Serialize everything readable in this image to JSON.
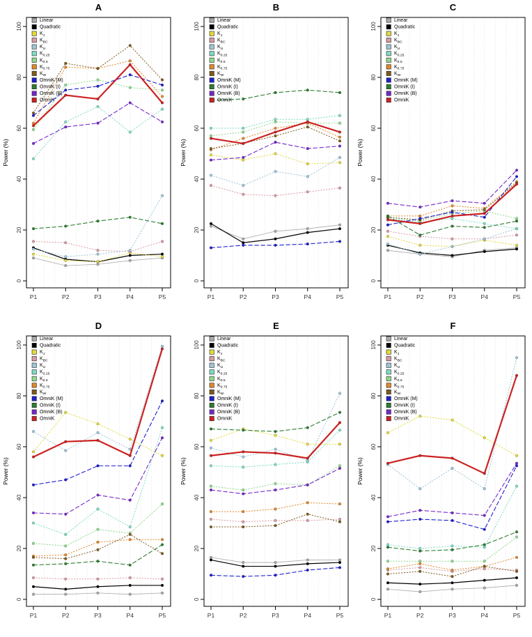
{
  "figure": {
    "background": "#ffffff"
  },
  "axis": {
    "ylabel": "Power (%)",
    "ylim": [
      0,
      100
    ],
    "yticks": [
      0,
      20,
      40,
      60,
      80,
      100
    ],
    "x_categories": [
      "P1",
      "P2",
      "P3",
      "P4",
      "P5"
    ],
    "grid": "vertical-dotted",
    "gridline_color": "#d9d9d9",
    "axis_color": "#000000",
    "tick_label_color": "#333333"
  },
  "legend": {
    "position": "top-left",
    "items": [
      {
        "label": "Linear",
        "color": "#a9a9a9",
        "line": "solid",
        "width": 0.8
      },
      {
        "label": "Quadratic",
        "color": "#000000",
        "line": "solid",
        "width": 1.2
      },
      {
        "label": "K_J",
        "color": "#e2d93b",
        "line": "dotted",
        "width": 1.0
      },
      {
        "label": "K_BC",
        "color": "#d89ba4",
        "line": "dotted",
        "width": 1.0
      },
      {
        "label": "K_U",
        "color": "#9fc5d8",
        "line": "dotted",
        "width": 1.0
      },
      {
        "label": "K_0.25",
        "color": "#7edcc3",
        "line": "dotted",
        "width": 1.0
      },
      {
        "label": "K_0.5",
        "color": "#8fd98f",
        "line": "dotted",
        "width": 1.0
      },
      {
        "label": "K_0.75",
        "color": "#e0882b",
        "line": "dotted",
        "width": 1.0
      },
      {
        "label": "K_W",
        "color": "#7d5a1e",
        "line": "dotted",
        "width": 1.0
      },
      {
        "label": "OmniK (M)",
        "color": "#1f1fcd",
        "line": "dashed",
        "width": 1.1
      },
      {
        "label": "OmniK (I)",
        "color": "#2e7d32",
        "line": "dashed",
        "width": 1.1
      },
      {
        "label": "OmniK (B)",
        "color": "#7528c8",
        "line": "dashed",
        "width": 1.1
      },
      {
        "label": "OmniK",
        "color": "#cc2222",
        "line": "solid",
        "width": 2.2
      }
    ]
  },
  "chart_data": [
    {
      "panel": "A",
      "type": "line",
      "title": "A",
      "x": [
        "P1",
        "P2",
        "P3",
        "P4",
        "P5"
      ],
      "ylabel": "Power (%)",
      "ylim": [
        0,
        100
      ],
      "series": [
        {
          "name": "Linear",
          "values": [
            9,
            6,
            6.5,
            8,
            9
          ]
        },
        {
          "name": "Quadratic",
          "values": [
            13,
            8.5,
            7.5,
            10,
            10.5
          ]
        },
        {
          "name": "K_J",
          "values": [
            10.5,
            8,
            7.5,
            11,
            9.5
          ]
        },
        {
          "name": "K_BC",
          "values": [
            15.5,
            15,
            12,
            11.5,
            15.5
          ]
        },
        {
          "name": "K_U",
          "values": [
            12.5,
            9.5,
            10.5,
            12,
            33.5
          ]
        },
        {
          "name": "K_0.25",
          "values": [
            48,
            62.5,
            68.5,
            58.5,
            67.5
          ]
        },
        {
          "name": "K_0.5",
          "values": [
            59.5,
            77,
            79,
            76,
            75
          ]
        },
        {
          "name": "K_0.75",
          "values": [
            62,
            84,
            83.5,
            86.5,
            72.5
          ]
        },
        {
          "name": "K_W",
          "values": [
            66,
            85.5,
            83.5,
            92.5,
            79
          ]
        },
        {
          "name": "OmniK (M)",
          "values": [
            65,
            75,
            76.5,
            81,
            77
          ]
        },
        {
          "name": "OmniK (I)",
          "values": [
            20.5,
            21.5,
            23.5,
            25,
            22.5
          ]
        },
        {
          "name": "OmniK (B)",
          "values": [
            54,
            60.5,
            62,
            70,
            62.5
          ]
        },
        {
          "name": "OmniK",
          "values": [
            61,
            73,
            71.5,
            85,
            70
          ]
        }
      ]
    },
    {
      "panel": "B",
      "type": "line",
      "title": "B",
      "x": [
        "P1",
        "P2",
        "P3",
        "P4",
        "P5"
      ],
      "ylabel": "Power (%)",
      "ylim": [
        0,
        100
      ],
      "series": [
        {
          "name": "Linear",
          "values": [
            21.5,
            16.5,
            19.5,
            20.5,
            22
          ]
        },
        {
          "name": "Quadratic",
          "values": [
            22.5,
            15,
            16.5,
            19,
            20.5
          ]
        },
        {
          "name": "K_J",
          "values": [
            49.5,
            47.5,
            50,
            46,
            46.5
          ]
        },
        {
          "name": "K_BC",
          "values": [
            37.5,
            34,
            33.5,
            35,
            36.5
          ]
        },
        {
          "name": "K_U",
          "values": [
            41.5,
            37.5,
            43,
            41,
            48.5
          ]
        },
        {
          "name": "K_0.25",
          "values": [
            60,
            60,
            63.5,
            63.5,
            65
          ]
        },
        {
          "name": "K_0.5",
          "values": [
            57,
            58.5,
            62.5,
            62,
            62
          ]
        },
        {
          "name": "K_0.75",
          "values": [
            51.5,
            56,
            60,
            62,
            56.5
          ]
        },
        {
          "name": "K_W",
          "values": [
            52,
            54,
            57,
            60.5,
            55
          ]
        },
        {
          "name": "OmniK (M)",
          "values": [
            13,
            14,
            14,
            14.5,
            15.5
          ]
        },
        {
          "name": "OmniK (I)",
          "values": [
            71,
            71.5,
            74,
            75,
            74
          ]
        },
        {
          "name": "OmniK (B)",
          "values": [
            47.5,
            48.5,
            54.5,
            52,
            53
          ]
        },
        {
          "name": "OmniK",
          "values": [
            56,
            54,
            58.5,
            62.5,
            58.5
          ]
        }
      ]
    },
    {
      "panel": "C",
      "type": "line",
      "title": "C",
      "x": [
        "P1",
        "P2",
        "P3",
        "P4",
        "P5"
      ],
      "ylabel": "Power (%)",
      "ylim": [
        0,
        100
      ],
      "series": [
        {
          "name": "Linear",
          "values": [
            12,
            10.5,
            9.5,
            12,
            13
          ]
        },
        {
          "name": "Quadratic",
          "values": [
            14,
            11,
            10,
            11.5,
            12.5
          ]
        },
        {
          "name": "K_J",
          "values": [
            17.5,
            14,
            13.5,
            16,
            14
          ]
        },
        {
          "name": "K_BC",
          "values": [
            19.5,
            17.5,
            16.5,
            16.5,
            18
          ]
        },
        {
          "name": "K_U",
          "values": [
            14.5,
            10.5,
            13.5,
            16.5,
            20.5
          ]
        },
        {
          "name": "K_0.25",
          "values": [
            24.5,
            23,
            24.5,
            22.5,
            20.5
          ]
        },
        {
          "name": "K_0.5",
          "values": [
            25,
            23.5,
            26.5,
            27.5,
            24.5
          ]
        },
        {
          "name": "K_0.75",
          "values": [
            25.5,
            25.5,
            29.5,
            28.5,
            39
          ]
        },
        {
          "name": "K_W",
          "values": [
            25,
            24,
            27.5,
            28,
            38.5
          ]
        },
        {
          "name": "OmniK (M)",
          "values": [
            22,
            24.5,
            27,
            25,
            41
          ]
        },
        {
          "name": "OmniK (I)",
          "values": [
            25.5,
            18,
            21.5,
            21,
            23.5
          ]
        },
        {
          "name": "OmniK (B)",
          "values": [
            30.5,
            29,
            31.5,
            30.5,
            43.5
          ]
        },
        {
          "name": "OmniK",
          "values": [
            24,
            22.5,
            25.5,
            26.5,
            38
          ]
        }
      ]
    },
    {
      "panel": "D",
      "type": "line",
      "title": "D",
      "x": [
        "P1",
        "P2",
        "P3",
        "P4",
        "P5"
      ],
      "ylabel": "Power (%)",
      "ylim": [
        0,
        100
      ],
      "series": [
        {
          "name": "Linear",
          "values": [
            2,
            2,
            2.5,
            2,
            2.5
          ]
        },
        {
          "name": "Quadratic",
          "values": [
            5,
            4,
            5,
            5.5,
            5.5
          ]
        },
        {
          "name": "K_J",
          "values": [
            58,
            73.5,
            69,
            63,
            56.5
          ]
        },
        {
          "name": "K_BC",
          "values": [
            8.5,
            8,
            8,
            8.5,
            8
          ]
        },
        {
          "name": "K_U",
          "values": [
            66,
            58.5,
            65.5,
            59,
            99.5
          ]
        },
        {
          "name": "K_0.25",
          "values": [
            30,
            25.5,
            35.5,
            28.5,
            67.5
          ]
        },
        {
          "name": "K_0.5",
          "values": [
            22,
            21,
            27.5,
            26,
            37.5
          ]
        },
        {
          "name": "K_0.75",
          "values": [
            17,
            17.5,
            22.5,
            23.5,
            23.5
          ]
        },
        {
          "name": "K_W",
          "values": [
            16.5,
            16,
            19.5,
            25.5,
            18
          ]
        },
        {
          "name": "OmniK (M)",
          "values": [
            45,
            47,
            52.5,
            52.5,
            78
          ]
        },
        {
          "name": "OmniK (I)",
          "values": [
            13.5,
            14,
            15,
            13.5,
            21.5
          ]
        },
        {
          "name": "OmniK (B)",
          "values": [
            34,
            33.5,
            41,
            39,
            63.5
          ]
        },
        {
          "name": "OmniK",
          "values": [
            56,
            62,
            62.5,
            56.5,
            98.5
          ]
        }
      ]
    },
    {
      "panel": "E",
      "type": "line",
      "title": "E",
      "x": [
        "P1",
        "P2",
        "P3",
        "P4",
        "P5"
      ],
      "ylabel": "Power (%)",
      "ylim": [
        0,
        100
      ],
      "series": [
        {
          "name": "Linear",
          "values": [
            16.5,
            14.5,
            14.5,
            15.5,
            15.5
          ]
        },
        {
          "name": "Quadratic",
          "values": [
            15.5,
            13,
            13,
            14,
            14.5
          ]
        },
        {
          "name": "K_J",
          "values": [
            62.5,
            67,
            64.5,
            61,
            61
          ]
        },
        {
          "name": "K_BC",
          "values": [
            31.5,
            30.5,
            31,
            31,
            31.5
          ]
        },
        {
          "name": "K_U",
          "values": [
            59.5,
            56,
            59,
            54.5,
            81
          ]
        },
        {
          "name": "K_0.25",
          "values": [
            52.5,
            52,
            53,
            54,
            66.5
          ]
        },
        {
          "name": "K_0.5",
          "values": [
            44.5,
            43,
            45.5,
            45,
            52.5
          ]
        },
        {
          "name": "K_0.75",
          "values": [
            34.5,
            34.5,
            35.5,
            38,
            37.5
          ]
        },
        {
          "name": "K_W",
          "values": [
            28.5,
            28.5,
            29,
            33.5,
            30.5
          ]
        },
        {
          "name": "OmniK (M)",
          "values": [
            9.5,
            9,
            9.5,
            11.5,
            12.5
          ]
        },
        {
          "name": "OmniK (I)",
          "values": [
            67,
            66.5,
            66,
            67.5,
            73.5
          ]
        },
        {
          "name": "OmniK (B)",
          "values": [
            43,
            41.5,
            43,
            45,
            51.5
          ]
        },
        {
          "name": "OmniK",
          "values": [
            56.5,
            58,
            57.5,
            55.5,
            69.5
          ]
        }
      ]
    },
    {
      "panel": "F",
      "type": "line",
      "title": "F",
      "x": [
        "P1",
        "P2",
        "P3",
        "P4",
        "P5"
      ],
      "ylabel": "Power (%)",
      "ylim": [
        0,
        100
      ],
      "series": [
        {
          "name": "Linear",
          "values": [
            4,
            3,
            4,
            4.5,
            5.5
          ]
        },
        {
          "name": "Quadratic",
          "values": [
            6.5,
            6,
            6.5,
            7.5,
            8.5
          ]
        },
        {
          "name": "K_J",
          "values": [
            65.5,
            72,
            70.5,
            63.5,
            56.5
          ]
        },
        {
          "name": "K_BC",
          "values": [
            11.5,
            12.5,
            11,
            12,
            11.5
          ]
        },
        {
          "name": "K_U",
          "values": [
            53,
            43.5,
            51.5,
            43.5,
            95
          ]
        },
        {
          "name": "K_0.25",
          "values": [
            21.5,
            20,
            21,
            20.5,
            44.5
          ]
        },
        {
          "name": "K_0.5",
          "values": [
            15,
            15,
            15,
            15,
            24.5
          ]
        },
        {
          "name": "K_0.75",
          "values": [
            12,
            14,
            11.5,
            13,
            16.5
          ]
        },
        {
          "name": "K_W",
          "values": [
            10,
            11,
            9,
            13,
            11
          ]
        },
        {
          "name": "OmniK (M)",
          "values": [
            30.5,
            31.5,
            31,
            27.5,
            52.5
          ]
        },
        {
          "name": "OmniK (I)",
          "values": [
            20.5,
            19,
            19.5,
            21.5,
            26.5
          ]
        },
        {
          "name": "OmniK (B)",
          "values": [
            32.5,
            35,
            34,
            33,
            53.5
          ]
        },
        {
          "name": "OmniK",
          "values": [
            53.5,
            56.5,
            55.5,
            49.5,
            88
          ]
        }
      ]
    }
  ]
}
